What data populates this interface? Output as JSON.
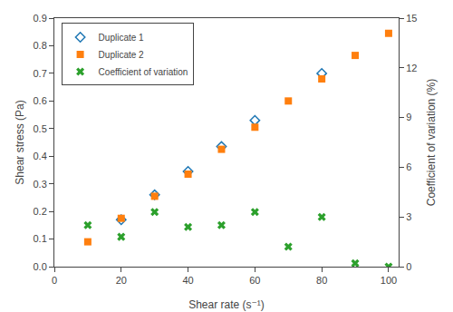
{
  "chart_data": {
    "type": "scatter",
    "x_label": "Shear rate (s⁻¹)",
    "y_label": "Shear stress (Pa)",
    "y2_label": "Coefficient of variation (%)",
    "x": [
      10,
      20,
      30,
      40,
      50,
      60,
      70,
      80,
      90,
      100
    ],
    "series": [
      {
        "name": "Duplicate 1",
        "marker": "diamond-open",
        "values": [
          null,
          0.17,
          0.26,
          0.345,
          0.435,
          0.53,
          null,
          0.7,
          null,
          null
        ]
      },
      {
        "name": "Duplicate 2",
        "marker": "square",
        "values": [
          0.09,
          0.175,
          0.255,
          0.335,
          0.425,
          0.505,
          0.6,
          0.68,
          0.765,
          0.845
        ]
      },
      {
        "name": "Coefficient of variation",
        "marker": "x",
        "axis": "y2",
        "values": [
          2.5,
          1.8,
          3.3,
          2.4,
          2.5,
          3.3,
          1.2,
          3.0,
          0.2,
          0.0
        ]
      }
    ],
    "xlim": [
      0,
      103
    ],
    "xticks": [
      0,
      20,
      40,
      60,
      80,
      100
    ],
    "ylim": [
      0,
      0.9
    ],
    "yticks": [
      {
        "value": 0,
        "label": "0.0"
      },
      0.1,
      0.2,
      0.3,
      0.4,
      0.5,
      0.6,
      0.7,
      0.8,
      0.9
    ],
    "y2lim": [
      0,
      15
    ],
    "y2ticks": [
      0,
      3,
      6,
      9,
      12,
      15
    ],
    "grid": false,
    "legend": "upper left"
  }
}
